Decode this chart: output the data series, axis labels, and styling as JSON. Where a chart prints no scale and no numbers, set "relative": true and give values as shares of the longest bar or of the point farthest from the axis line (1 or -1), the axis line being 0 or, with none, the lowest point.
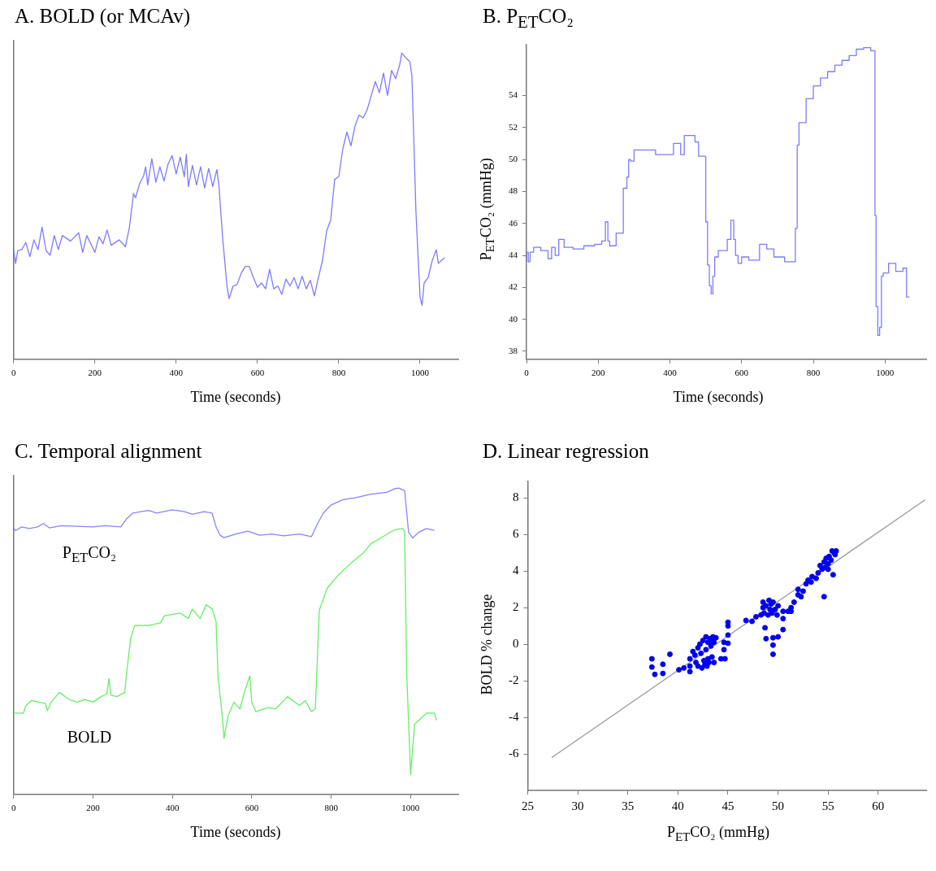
{
  "chart_data": [
    {
      "type": "line",
      "title": "A. BOLD (or MCAv)",
      "xlabel": "Time (seconds)",
      "relative": true,
      "tick_labels": "x",
      "grid": false,
      "legend": false,
      "xlim": [
        0,
        1094
      ],
      "xticks": [
        0,
        200,
        400,
        600,
        800,
        1000
      ],
      "series": [
        {
          "color": "#7b7bff",
          "x": [
            0,
            5,
            10,
            20,
            30,
            40,
            50,
            60,
            70,
            80,
            90,
            100,
            110,
            120,
            140,
            160,
            170,
            180,
            200,
            210,
            220,
            230,
            240,
            260,
            275,
            285,
            295,
            300,
            310,
            320,
            325,
            330,
            340,
            350,
            360,
            370,
            380,
            390,
            400,
            410,
            420,
            425,
            430,
            440,
            450,
            460,
            470,
            480,
            490,
            500,
            505,
            515,
            525,
            530,
            540,
            550,
            560,
            570,
            580,
            590,
            600,
            610,
            620,
            630,
            640,
            650,
            660,
            670,
            680,
            690,
            700,
            710,
            720,
            730,
            740,
            750,
            760,
            770,
            780,
            790,
            800,
            810,
            820,
            830,
            840,
            850,
            860,
            870,
            880,
            890,
            900,
            910,
            920,
            930,
            940,
            950,
            955,
            965,
            975,
            980,
            990,
            1000,
            1005,
            1010,
            1020,
            1030,
            1040,
            1045,
            1060
          ],
          "values": [
            0.358,
            0.313,
            0.354,
            0.358,
            0.381,
            0.335,
            0.39,
            0.358,
            0.431,
            0.354,
            0.34,
            0.404,
            0.358,
            0.404,
            0.386,
            0.413,
            0.349,
            0.404,
            0.349,
            0.4,
            0.377,
            0.422,
            0.372,
            0.39,
            0.367,
            0.431,
            0.541,
            0.527,
            0.573,
            0.6,
            0.628,
            0.569,
            0.655,
            0.578,
            0.628,
            0.582,
            0.637,
            0.665,
            0.605,
            0.66,
            0.596,
            0.669,
            0.564,
            0.633,
            0.569,
            0.628,
            0.559,
            0.623,
            0.564,
            0.619,
            0.569,
            0.386,
            0.239,
            0.198,
            0.239,
            0.244,
            0.281,
            0.303,
            0.303,
            0.267,
            0.235,
            0.249,
            0.23,
            0.294,
            0.23,
            0.239,
            0.212,
            0.262,
            0.239,
            0.267,
            0.23,
            0.271,
            0.23,
            0.258,
            0.207,
            0.267,
            0.322,
            0.418,
            0.454,
            0.587,
            0.596,
            0.687,
            0.742,
            0.697,
            0.761,
            0.797,
            0.788,
            0.815,
            0.861,
            0.907,
            0.87,
            0.934,
            0.861,
            0.943,
            0.916,
            0.962,
            1.0,
            0.984,
            0.971,
            0.925,
            0.477,
            0.203,
            0.176,
            0.249,
            0.267,
            0.322,
            0.358,
            0.313,
            0.331
          ]
        }
      ]
    },
    {
      "type": "step",
      "title": "B. P$_{ET}$CO₂",
      "xlabel": "Time (seconds)",
      "ylabel": "P$_{ET}$CO₂ (mmHg)",
      "grid": false,
      "legend": false,
      "xlim": [
        0,
        1115
      ],
      "xticks": [
        0,
        200,
        400,
        600,
        800,
        1000
      ],
      "ylim": [
        37.5,
        57.2
      ],
      "yticks": [
        38,
        40,
        42,
        44,
        46,
        48,
        50,
        52,
        54
      ],
      "series": [
        {
          "color": "#7b7bff",
          "x": [
            0,
            5,
            10,
            20,
            40,
            60,
            70,
            80,
            90,
            105,
            130,
            160,
            190,
            210,
            220,
            227,
            232,
            250,
            270,
            280,
            285,
            290,
            300,
            360,
            410,
            430,
            440,
            470,
            480,
            500,
            505,
            510,
            515,
            520,
            525,
            535,
            560,
            570,
            578,
            583,
            590,
            600,
            620,
            650,
            670,
            690,
            720,
            750,
            755,
            760,
            780,
            800,
            820,
            840,
            860,
            880,
            900,
            920,
            940,
            960,
            972,
            975,
            980,
            985,
            990,
            995,
            1010,
            1030,
            1050,
            1060,
            1068
          ],
          "values": [
            43.6,
            44.2,
            43.6,
            44.2,
            44.5,
            44.3,
            43.8,
            44.5,
            44,
            45,
            44.5,
            44.4,
            44.6,
            44.7,
            44.9,
            46.1,
            44.9,
            44.6,
            45.4,
            48.2,
            48.9,
            50,
            49.9,
            50.6,
            50.3,
            51,
            50.3,
            51.5,
            51.1,
            50.2,
            46.1,
            43.4,
            42.1,
            41.6,
            42.7,
            43.9,
            44.3,
            45,
            46.2,
            45,
            44,
            43.5,
            43.9,
            43.7,
            44.7,
            44.4,
            43.9,
            43.6,
            45.7,
            50.9,
            52.3,
            53.8,
            54.6,
            55.1,
            55.5,
            55.9,
            56.2,
            56.5,
            56.9,
            57,
            56.8,
            46.5,
            40.8,
            39,
            39.5,
            42.7,
            42.9,
            43.5,
            43,
            43.2,
            41.4
          ]
        }
      ]
    },
    {
      "type": "line",
      "title": "C. Temporal alignment",
      "xlabel": "Time (seconds)",
      "relative": true,
      "tick_labels": "x",
      "grid": false,
      "legend": false,
      "xlim": [
        0,
        1120
      ],
      "xticks": [
        0,
        200,
        400,
        600,
        800,
        1000
      ],
      "annotations": [
        "P$_{ET}$CO₂",
        "BOLD"
      ],
      "series": [
        {
          "color": "#8585ff",
          "x": [
            0,
            5,
            20,
            40,
            60,
            75,
            90,
            120,
            160,
            200,
            230,
            270,
            285,
            300,
            340,
            360,
            400,
            430,
            450,
            480,
            500,
            510,
            520,
            530,
            560,
            590,
            620,
            650,
            680,
            720,
            750,
            765,
            780,
            800,
            830,
            860,
            900,
            940,
            960,
            970,
            985,
            995,
            1005,
            1020,
            1040,
            1060
          ],
          "values": [
            0.868,
            0.861,
            0.873,
            0.868,
            0.873,
            0.884,
            0.87,
            0.877,
            0.875,
            0.873,
            0.877,
            0.873,
            0.9,
            0.918,
            0.927,
            0.918,
            0.929,
            0.923,
            0.914,
            0.923,
            0.918,
            0.873,
            0.846,
            0.838,
            0.85,
            0.859,
            0.846,
            0.85,
            0.844,
            0.85,
            0.841,
            0.882,
            0.918,
            0.945,
            0.962,
            0.968,
            0.98,
            0.986,
            0.998,
            1.0,
            0.991,
            0.855,
            0.837,
            0.855,
            0.868,
            0.862
          ]
        },
        {
          "color": "#66ee66",
          "x": [
            0,
            25,
            30,
            45,
            80,
            85,
            95,
            115,
            140,
            160,
            180,
            200,
            220,
            235,
            240,
            245,
            260,
            280,
            285,
            295,
            305,
            340,
            370,
            380,
            420,
            440,
            450,
            470,
            485,
            500,
            510,
            515,
            525,
            530,
            540,
            555,
            570,
            580,
            595,
            600,
            610,
            640,
            660,
            690,
            720,
            735,
            750,
            760,
            770,
            790,
            820,
            850,
            880,
            900,
            930,
            960,
            980,
            985,
            990,
            1000,
            1010,
            1025,
            1040,
            1060,
            1065
          ],
          "values": [
            0.265,
            0.265,
            0.288,
            0.306,
            0.297,
            0.274,
            0.301,
            0.333,
            0.31,
            0.301,
            0.31,
            0.301,
            0.319,
            0.328,
            0.378,
            0.324,
            0.319,
            0.333,
            0.401,
            0.51,
            0.551,
            0.551,
            0.56,
            0.583,
            0.592,
            0.574,
            0.605,
            0.574,
            0.619,
            0.605,
            0.564,
            0.383,
            0.265,
            0.183,
            0.256,
            0.301,
            0.279,
            0.328,
            0.387,
            0.301,
            0.27,
            0.283,
            0.279,
            0.319,
            0.29,
            0.306,
            0.27,
            0.279,
            0.601,
            0.673,
            0.719,
            0.755,
            0.787,
            0.818,
            0.841,
            0.864,
            0.868,
            0.859,
            0.401,
            0.065,
            0.229,
            0.247,
            0.265,
            0.265,
            0.242
          ]
        }
      ]
    },
    {
      "type": "scatter",
      "title": "D. Linear regression",
      "xlabel": "P$_{ET}$CO₂ (mmHg)",
      "ylabel": "BOLD % change",
      "grid": false,
      "legend": false,
      "xlim": [
        25,
        64.8
      ],
      "xticks": [
        25,
        30,
        35,
        40,
        45,
        50,
        55,
        60
      ],
      "ylim": [
        -8,
        8.9
      ],
      "yticks": [
        -6,
        -4,
        -2,
        0,
        2,
        4,
        6,
        8
      ],
      "series": [
        {
          "color": "#0000ee",
          "marker": "circle",
          "x": [
            37.4,
            37.4,
            37.7,
            38.5,
            38.5,
            39.2,
            40.1,
            40.6,
            41.2,
            41.2,
            41.2,
            41.5,
            41.7,
            41.8,
            42,
            42,
            42.2,
            42.3,
            42.4,
            42.5,
            42.6,
            42.7,
            42.8,
            42.8,
            42.9,
            43,
            43,
            43.1,
            43.2,
            43.3,
            43.4,
            43.4,
            43.5,
            43.6,
            43.6,
            43.8,
            44.3,
            44.6,
            44.6,
            44.7,
            45,
            45,
            45,
            45,
            46.8,
            47.4,
            47.8,
            48.3,
            48.5,
            48.5,
            48.6,
            48.7,
            48.8,
            48.8,
            49,
            49.1,
            49.2,
            49.3,
            49.4,
            49.5,
            49.5,
            49.5,
            49.5,
            49.7,
            49.9,
            50,
            50,
            50.5,
            50.5,
            50.5,
            51,
            51.3,
            51.3,
            51.6,
            52,
            52,
            52.3,
            52.5,
            52.8,
            53,
            53.3,
            53.4,
            53.8,
            54,
            54.2,
            54.4,
            54.6,
            54.6,
            54.7,
            54.8,
            55,
            55,
            55.1,
            55.3,
            55.4,
            55.5,
            55.6,
            55.7,
            55.8
          ],
          "values": [
            -0.8,
            -1.25,
            -1.65,
            -1.1,
            -1.6,
            -0.55,
            -1.4,
            -1.3,
            -0.8,
            -1.2,
            -1.5,
            -0.4,
            -0.6,
            -1,
            -0.2,
            -1.2,
            0,
            -0.5,
            -1.3,
            0.2,
            -0.9,
            -1.1,
            0.4,
            -0.3,
            -1.2,
            0.1,
            -0.8,
            -1,
            0.3,
            -0.1,
            0.2,
            -0.7,
            0.4,
            0.1,
            -1,
            0.35,
            -0.8,
            -0.3,
            0.1,
            -0.8,
            1.2,
            1,
            0.5,
            0.05,
            1.3,
            1.25,
            1.5,
            1.6,
            2.3,
            2,
            1.7,
            0.9,
            2.1,
            0.3,
            1.6,
            2.4,
            1.9,
            2.2,
            1.7,
            2.3,
            0.35,
            -0.05,
            -0.55,
            1.9,
            1.6,
            2.1,
            0.4,
            1.8,
            1.4,
            0.8,
            1.8,
            1.8,
            2,
            2.3,
            3,
            2.7,
            2.6,
            2.9,
            3.3,
            3.5,
            3.4,
            3.7,
            3.6,
            3.9,
            4.3,
            4.1,
            4.5,
            2.6,
            4.2,
            4.7,
            4.4,
            4.1,
            4.8,
            4.6,
            5.1,
            3.8,
            5,
            4.9,
            5.1
          ]
        },
        {
          "type": "line",
          "color": "#9a9a9a",
          "marker": "none",
          "x": [
            27.4,
            64.7
          ],
          "values": [
            -6.2,
            7.9
          ]
        }
      ]
    }
  ]
}
